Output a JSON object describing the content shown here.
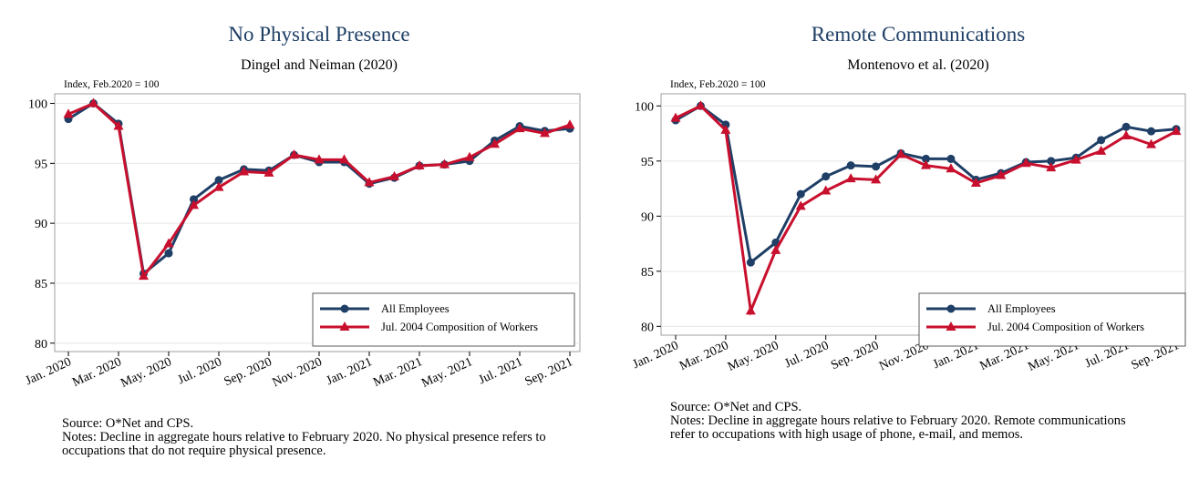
{
  "chart_data": [
    {
      "type": "line",
      "title": "No Physical Presence",
      "subtitle": "Dingel and Neiman (2020)",
      "y_label": "Index, Feb.2020 = 100",
      "categories": [
        "Jan. 2020",
        null,
        "Mar. 2020",
        null,
        "May. 2020",
        null,
        "Jul. 2020",
        null,
        "Sep. 2020",
        null,
        "Nov. 2020",
        null,
        "Jan. 2021",
        null,
        "Mar. 2021",
        null,
        "May. 2021",
        null,
        "Jul. 2021",
        null,
        "Sep. 2021"
      ],
      "series": [
        {
          "name": "All Employees",
          "color": "#1f3f66",
          "marker": "circle",
          "values": [
            98.7,
            100,
            98.3,
            85.8,
            87.5,
            92.0,
            93.6,
            94.5,
            94.4,
            95.7,
            95.1,
            95.1,
            93.3,
            93.8,
            94.8,
            94.9,
            95.2,
            96.9,
            98.1,
            97.7,
            97.9
          ]
        },
        {
          "name": "Jul. 2004 Composition of Workers",
          "color": "#c8102e",
          "marker": "triangle",
          "values": [
            99.1,
            100,
            98.1,
            85.6,
            88.3,
            91.5,
            93.0,
            94.3,
            94.2,
            95.7,
            95.3,
            95.3,
            93.4,
            93.9,
            94.8,
            94.9,
            95.5,
            96.6,
            97.9,
            97.5,
            98.2
          ]
        }
      ],
      "ylim": [
        79.3,
        100.8
      ],
      "yticks": [
        80,
        85,
        90,
        95,
        100
      ],
      "grid": true,
      "legend": "lower right",
      "source": "Source: O*Net and CPS.",
      "notes": "Notes: Decline in aggregate hours relative to February 2020. No physical presence refers to occupations that do not require physical presence."
    },
    {
      "type": "line",
      "title": "Remote Communications",
      "subtitle": "Montenovo et al. (2020)",
      "y_label": "Index, Feb.2020 = 100",
      "categories": [
        "Jan. 2020",
        null,
        "Mar. 2020",
        null,
        "May. 2020",
        null,
        "Jul. 2020",
        null,
        "Sep. 2020",
        null,
        "Nov. 2020",
        null,
        "Jan. 2021",
        null,
        "Mar. 2021",
        null,
        "May. 2021",
        null,
        "Jul. 2021",
        null,
        "Sep. 2021"
      ],
      "series": [
        {
          "name": "All Employees",
          "color": "#1f3f66",
          "marker": "circle",
          "values": [
            98.7,
            100,
            98.3,
            85.8,
            87.6,
            92.0,
            93.6,
            94.6,
            94.5,
            95.7,
            95.2,
            95.2,
            93.3,
            93.9,
            94.9,
            95.0,
            95.3,
            96.9,
            98.1,
            97.7,
            97.9
          ]
        },
        {
          "name": "Jul. 2004 Composition of Workers",
          "color": "#c8102e",
          "marker": "triangle",
          "values": [
            98.9,
            100,
            97.8,
            81.4,
            86.9,
            90.9,
            92.3,
            93.4,
            93.3,
            95.6,
            94.6,
            94.3,
            93.0,
            93.7,
            94.8,
            94.4,
            95.1,
            95.9,
            97.3,
            96.5,
            97.7
          ]
        }
      ],
      "ylim": [
        79.2,
        101.1
      ],
      "yticks": [
        80,
        85,
        90,
        95,
        100
      ],
      "grid": true,
      "legend": "lower right",
      "source": "Source: O*Net and CPS.",
      "notes": "Notes: Decline in aggregate hours relative to February 2020. Remote communications refer to occupations with high usage of phone, e-mail, and memos."
    }
  ]
}
